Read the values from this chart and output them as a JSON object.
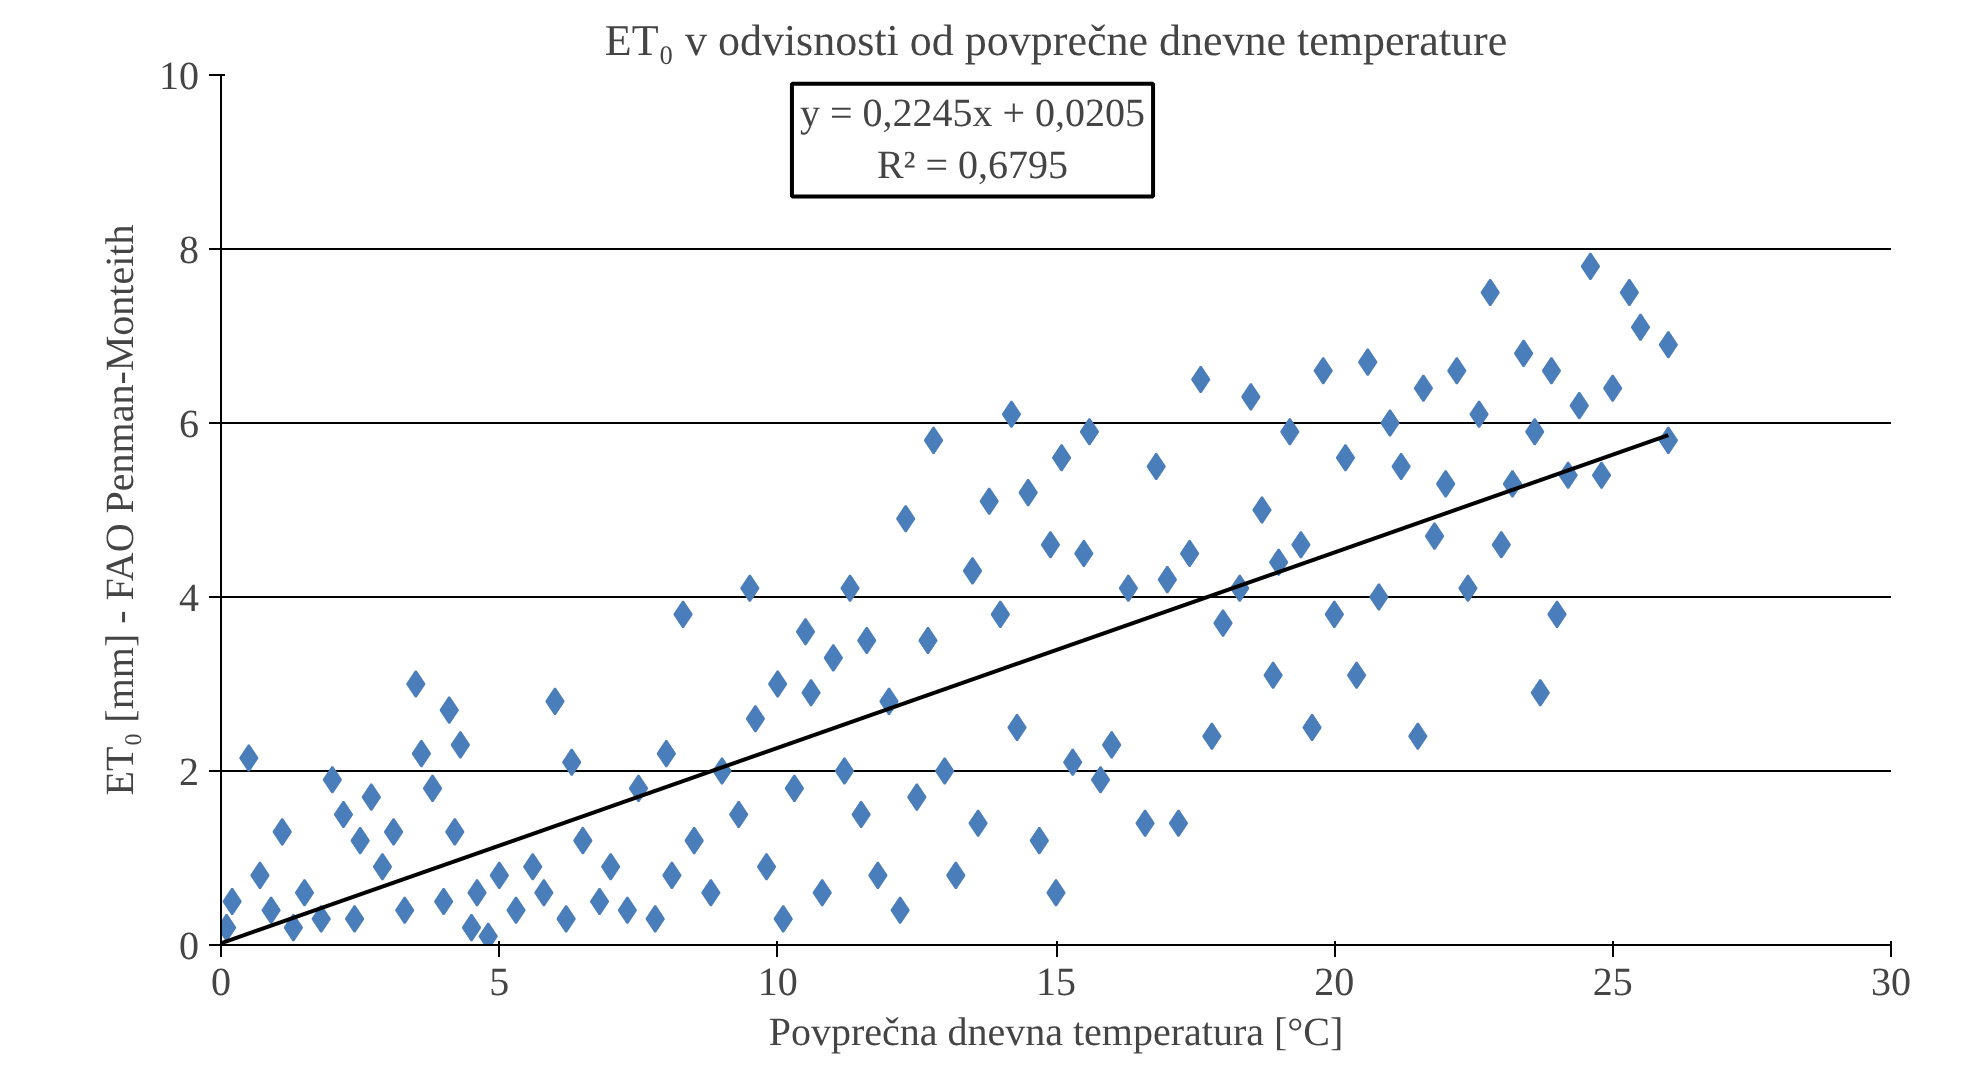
{
  "chart_data": {
    "type": "scatter",
    "title": "ET₀ v odvisnosti od povprečne dnevne temperature",
    "xlabel": "Povprečna dnevna temperatura [°C]",
    "ylabel": "ET₀ [mm] - FAO Penman-Monteith",
    "xlim": [
      0,
      30
    ],
    "ylim": [
      0,
      10
    ],
    "xticks": [
      0,
      5,
      10,
      15,
      20,
      25,
      30
    ],
    "yticks": [
      0,
      2,
      4,
      6,
      8,
      10
    ],
    "grid": "y",
    "marker": "diamond",
    "annotations": [
      "y = 0,2245x + 0,0205",
      "R² = 0,6795"
    ],
    "series": [
      {
        "color": "#4a7ebb",
        "x": [
          0.1,
          0.2,
          0.5,
          0.7,
          0.9,
          1.1,
          1.3,
          1.5,
          1.8,
          2.0,
          2.2,
          2.4,
          2.5,
          2.7,
          2.9,
          3.1,
          3.3,
          3.5,
          3.6,
          3.8,
          4.0,
          4.1,
          4.2,
          4.3,
          4.5,
          4.6,
          4.8,
          5.0,
          5.3,
          5.6,
          5.8,
          6.0,
          6.2,
          6.3,
          6.5,
          6.8,
          7.0,
          7.3,
          7.5,
          7.8,
          8.0,
          8.1,
          8.3,
          8.5,
          8.8,
          9.0,
          9.3,
          9.5,
          9.6,
          9.8,
          10.0,
          10.1,
          10.3,
          10.5,
          10.6,
          10.8,
          11.0,
          11.2,
          11.3,
          11.5,
          11.6,
          11.8,
          12.0,
          12.2,
          12.3,
          12.5,
          12.7,
          12.8,
          13.0,
          13.2,
          13.5,
          13.6,
          13.8,
          14.0,
          14.2,
          14.3,
          14.5,
          14.7,
          14.9,
          15.0,
          15.1,
          15.3,
          15.5,
          15.6,
          15.8,
          16.0,
          16.3,
          16.6,
          16.8,
          17.0,
          17.2,
          17.4,
          17.6,
          17.8,
          18.0,
          18.3,
          18.5,
          18.7,
          18.9,
          19.0,
          19.2,
          19.4,
          19.6,
          19.8,
          20.0,
          20.2,
          20.4,
          20.6,
          20.8,
          21.0,
          21.2,
          21.5,
          21.6,
          21.8,
          22.0,
          22.2,
          22.4,
          22.6,
          22.8,
          23.0,
          23.2,
          23.4,
          23.6,
          23.7,
          23.9,
          24.0,
          24.2,
          24.4,
          24.6,
          24.8,
          25.0,
          25.3,
          25.5,
          26.0,
          26.0
        ],
        "values": [
          0.2,
          0.5,
          2.15,
          0.8,
          0.4,
          1.3,
          0.2,
          0.6,
          0.3,
          1.9,
          1.5,
          0.3,
          1.2,
          1.7,
          0.9,
          1.3,
          0.4,
          3.0,
          2.2,
          1.8,
          0.5,
          2.7,
          1.3,
          2.3,
          0.2,
          0.6,
          0.1,
          0.8,
          0.4,
          0.9,
          0.6,
          2.8,
          0.3,
          2.1,
          1.2,
          0.5,
          0.9,
          0.4,
          1.8,
          0.3,
          2.2,
          0.8,
          3.8,
          1.2,
          0.6,
          2.0,
          1.5,
          4.1,
          2.6,
          0.9,
          3.0,
          0.3,
          1.8,
          3.6,
          2.9,
          0.6,
          3.3,
          2.0,
          4.1,
          1.5,
          3.5,
          0.8,
          2.8,
          0.4,
          4.9,
          1.7,
          3.5,
          5.8,
          2.0,
          0.8,
          4.3,
          1.4,
          5.1,
          3.8,
          6.1,
          2.5,
          5.2,
          1.2,
          4.6,
          0.6,
          5.6,
          2.1,
          4.5,
          5.9,
          1.9,
          2.3,
          4.1,
          1.4,
          5.5,
          4.2,
          1.4,
          4.5,
          6.5,
          2.4,
          3.7,
          4.1,
          6.3,
          5.0,
          3.1,
          4.4,
          5.9,
          4.6,
          2.5,
          6.6,
          3.8,
          5.6,
          3.1,
          6.7,
          4.0,
          6.0,
          5.5,
          2.4,
          6.4,
          4.7,
          5.3,
          6.6,
          4.1,
          6.1,
          7.5,
          4.6,
          5.3,
          6.8,
          5.9,
          2.9,
          6.6,
          3.8,
          5.4,
          6.2,
          7.8,
          5.4,
          6.4,
          7.5,
          7.1,
          6.9,
          5.8
        ]
      },
      {
        "type": "line",
        "marker": "none",
        "color": "#000000",
        "x": [
          0,
          26
        ],
        "values": [
          0.02,
          5.86
        ]
      }
    ]
  }
}
